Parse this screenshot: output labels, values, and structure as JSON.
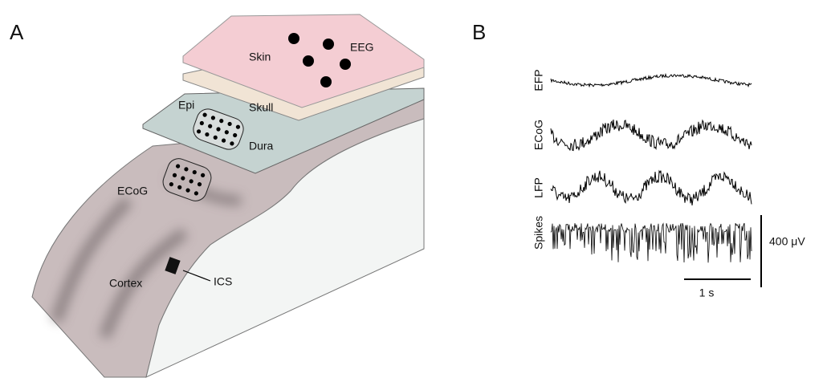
{
  "panel_a": {
    "label": "A",
    "layers": {
      "skin": "Skin",
      "eeg": "EEG",
      "skull": "Skull",
      "epi": "Epi",
      "dura": "Dura",
      "ecog": "ECoG",
      "cortex": "Cortex",
      "ics": "ICS"
    }
  },
  "panel_b": {
    "label": "B",
    "traces": [
      "EFP",
      "ECoG",
      "LFP",
      "Spikes"
    ],
    "scale_voltage": "400 μV",
    "scale_time": "1 s"
  }
}
